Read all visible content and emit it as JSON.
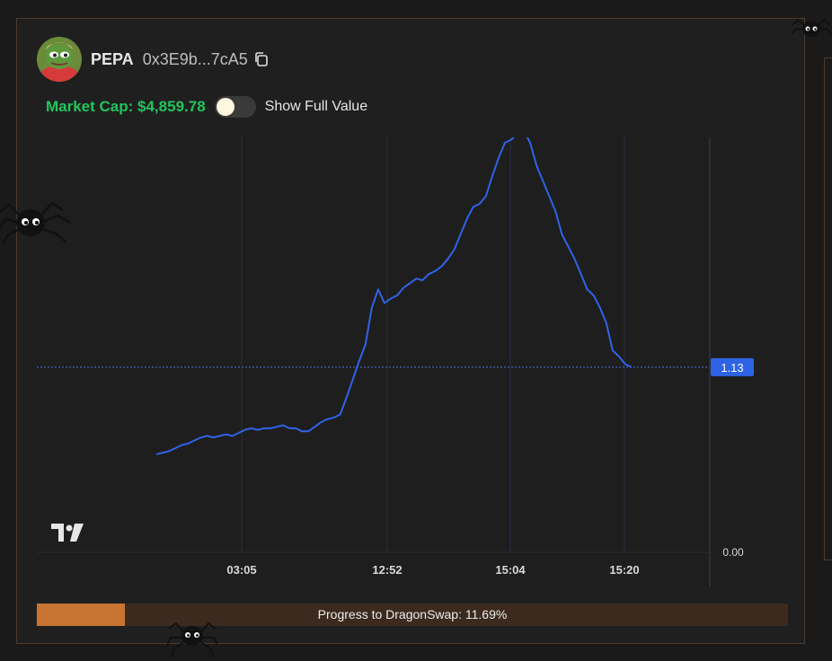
{
  "token": {
    "symbol": "PEPA",
    "address_short": "0x3E9b...7cA5",
    "avatar_icon": "pepe-avatar-icon"
  },
  "market_cap": {
    "label": "Market Cap: $4,859.78"
  },
  "toggle": {
    "label": "Show Full Value",
    "on": false
  },
  "chart_data": {
    "type": "line",
    "x_ticks": [
      "03:05",
      "12:52",
      "15:04",
      "15:20"
    ],
    "y_ticks": [
      "0.00"
    ],
    "current_value_label": "1.13",
    "current_value": 1.13,
    "ylim": [
      0,
      2.6
    ],
    "line_color": "#2f63e6",
    "series": [
      {
        "values": [
          0.56,
          0.57,
          0.58,
          0.6,
          0.62,
          0.63,
          0.65,
          0.67,
          0.68,
          0.67,
          0.68,
          0.69,
          0.68,
          0.7,
          0.72,
          0.73,
          0.72,
          0.73,
          0.73,
          0.74,
          0.75,
          0.73,
          0.73,
          0.71,
          0.71,
          0.74,
          0.77,
          0.79,
          0.8,
          0.82,
          0.93,
          1.05,
          1.17,
          1.28,
          1.52,
          1.64,
          1.55,
          1.58,
          1.6,
          1.65,
          1.68,
          1.71,
          1.7,
          1.74,
          1.76,
          1.79,
          1.84,
          1.9,
          2.0,
          2.1,
          2.18,
          2.2,
          2.25,
          2.38,
          2.5,
          2.6,
          2.62,
          2.66,
          2.68,
          2.6,
          2.45,
          2.35,
          2.25,
          2.15,
          2.0,
          1.92,
          1.84,
          1.74,
          1.64,
          1.6,
          1.52,
          1.42,
          1.24,
          1.2,
          1.15,
          1.13
        ]
      }
    ]
  },
  "progress": {
    "label": "Progress to DragonSwap: 11.69%",
    "percent": 11.69
  },
  "colors": {
    "accent_green": "#22c55e",
    "progress_fill": "#c87533",
    "progress_track": "#3c2a1e",
    "price_tag": "#2f63e6"
  }
}
